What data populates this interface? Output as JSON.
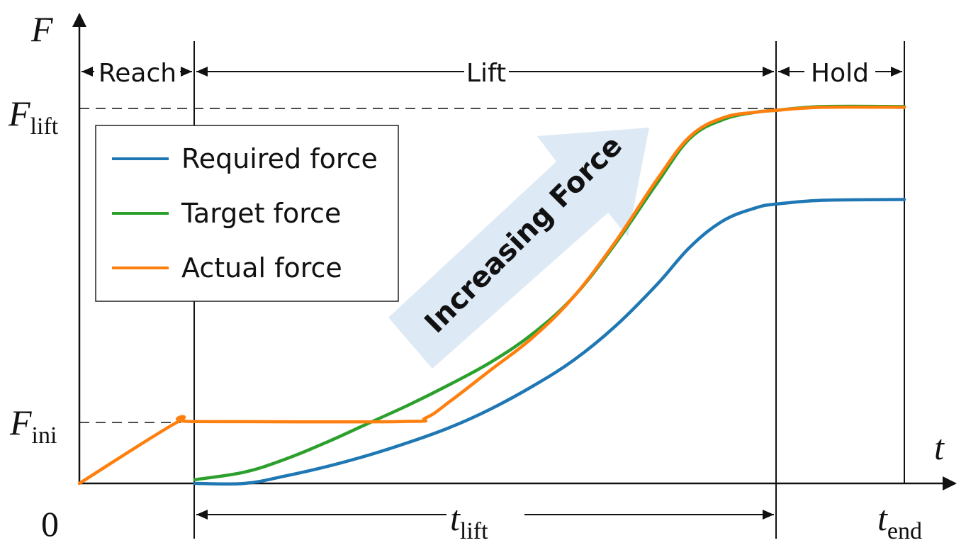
{
  "chart_data": {
    "type": "line",
    "title": "",
    "x_axis": {
      "label": "t",
      "origin_label": "0",
      "range": [
        0,
        1.05
      ],
      "markers": [
        {
          "name": "reach_end",
          "x": 0.14
        },
        {
          "name": "t_lift",
          "x": 0.845,
          "label_main": "t",
          "label_sub": "lift"
        },
        {
          "name": "t_end",
          "x": 1.0,
          "label_main": "t",
          "label_sub": "end"
        }
      ]
    },
    "y_axis": {
      "label": "F",
      "range": [
        0,
        1.0
      ],
      "reference_lines": [
        {
          "name": "F_lift",
          "y": 1.0,
          "label_main": "F",
          "label_sub": "lift"
        },
        {
          "name": "F_ini",
          "y": 0.165,
          "label_main": "F",
          "label_sub": "ini"
        }
      ]
    },
    "phases": [
      {
        "label": "Reach",
        "start": 0.0,
        "end": 0.14
      },
      {
        "label": "Lift",
        "start": 0.14,
        "end": 0.845
      },
      {
        "label": "Hold",
        "start": 0.845,
        "end": 1.0
      }
    ],
    "annotation": {
      "text": "Increasing Force"
    },
    "legend": {
      "position": "top-left"
    },
    "series": [
      {
        "name": "Required force",
        "color": "#1f77b4",
        "points": [
          [
            0.14,
            0.0
          ],
          [
            0.2,
            0.0
          ],
          [
            0.25,
            0.02
          ],
          [
            0.3,
            0.045
          ],
          [
            0.35,
            0.075
          ],
          [
            0.4,
            0.11
          ],
          [
            0.45,
            0.15
          ],
          [
            0.5,
            0.2
          ],
          [
            0.55,
            0.26
          ],
          [
            0.6,
            0.33
          ],
          [
            0.65,
            0.42
          ],
          [
            0.7,
            0.53
          ],
          [
            0.74,
            0.63
          ],
          [
            0.78,
            0.7
          ],
          [
            0.82,
            0.735
          ],
          [
            0.845,
            0.745
          ],
          [
            0.9,
            0.755
          ],
          [
            1.0,
            0.757
          ]
        ]
      },
      {
        "name": "Target force",
        "color": "#2ca02c",
        "points": [
          [
            0.14,
            0.01
          ],
          [
            0.2,
            0.03
          ],
          [
            0.25,
            0.065
          ],
          [
            0.3,
            0.11
          ],
          [
            0.35,
            0.16
          ],
          [
            0.4,
            0.21
          ],
          [
            0.45,
            0.265
          ],
          [
            0.5,
            0.325
          ],
          [
            0.55,
            0.4
          ],
          [
            0.6,
            0.5
          ],
          [
            0.65,
            0.64
          ],
          [
            0.7,
            0.8
          ],
          [
            0.74,
            0.92
          ],
          [
            0.78,
            0.97
          ],
          [
            0.82,
            0.99
          ],
          [
            0.845,
            0.995
          ],
          [
            0.9,
            1.005
          ],
          [
            1.0,
            1.005
          ]
        ]
      },
      {
        "name": "Actual force",
        "color": "#ff7f0e",
        "points": [
          [
            0.0,
            0.0
          ],
          [
            0.12,
            0.165
          ],
          [
            0.14,
            0.165
          ],
          [
            0.39,
            0.165
          ],
          [
            0.42,
            0.175
          ],
          [
            0.45,
            0.22
          ],
          [
            0.5,
            0.305
          ],
          [
            0.55,
            0.39
          ],
          [
            0.6,
            0.5
          ],
          [
            0.65,
            0.645
          ],
          [
            0.7,
            0.81
          ],
          [
            0.74,
            0.925
          ],
          [
            0.78,
            0.975
          ],
          [
            0.82,
            0.99
          ],
          [
            0.845,
            0.995
          ],
          [
            0.9,
            1.003
          ],
          [
            1.0,
            1.003
          ]
        ]
      }
    ]
  }
}
